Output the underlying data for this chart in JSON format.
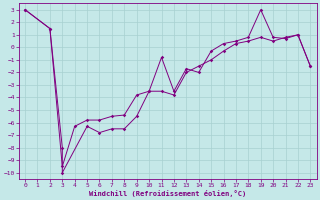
{
  "xlabel": "Windchill (Refroidissement éolien,°C)",
  "ylabel": "",
  "bg_color": "#c5e8e8",
  "line_color": "#800080",
  "grid_color": "#a8d0d0",
  "xlim": [
    -0.5,
    23.5
  ],
  "ylim": [
    -10.5,
    3.5
  ],
  "xticks": [
    0,
    1,
    2,
    3,
    4,
    5,
    6,
    7,
    8,
    9,
    10,
    11,
    12,
    13,
    14,
    15,
    16,
    17,
    18,
    19,
    20,
    21,
    22,
    23
  ],
  "yticks": [
    3,
    2,
    1,
    0,
    -1,
    -2,
    -3,
    -4,
    -5,
    -6,
    -7,
    -8,
    -9,
    -10
  ],
  "line1_x": [
    0,
    2,
    3,
    4,
    5,
    6,
    7,
    8,
    9,
    10,
    11,
    12,
    13,
    14,
    15,
    16,
    17,
    18,
    19,
    20,
    21,
    22,
    23
  ],
  "line1_y": [
    3,
    1.5,
    -9.5,
    -6.3,
    -5.8,
    -5.8,
    -5.5,
    -5.4,
    -3.8,
    -3.5,
    -0.8,
    -3.5,
    -1.7,
    -2.0,
    -0.3,
    0.3,
    0.5,
    0.8,
    3.0,
    0.8,
    0.7,
    1.0,
    -1.5
  ],
  "line2_x": [
    0,
    2,
    3,
    3,
    5,
    6,
    7,
    8,
    9,
    10,
    11,
    12,
    13,
    14,
    15,
    16,
    17,
    18,
    19,
    20,
    21,
    22,
    23
  ],
  "line2_y": [
    3,
    1.5,
    -8.0,
    -10,
    -6.3,
    -6.8,
    -6.5,
    -6.5,
    -5.5,
    -3.5,
    -3.5,
    -3.8,
    -2.0,
    -1.5,
    -1.0,
    -0.3,
    0.3,
    0.5,
    0.8,
    0.5,
    0.8,
    1.0,
    -1.5
  ]
}
